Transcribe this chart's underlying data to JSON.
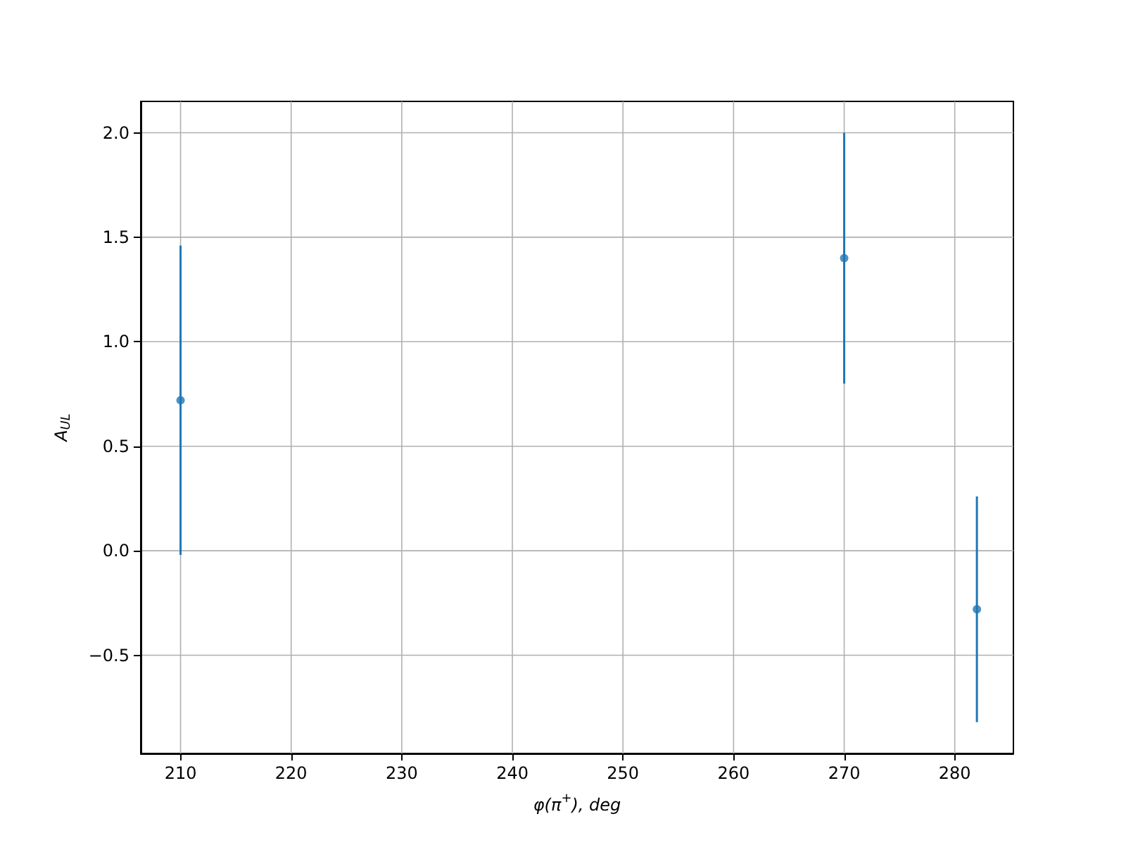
{
  "chart_data": {
    "type": "scatter",
    "xlabel": "φ(π$^{+}$), deg",
    "ylabel": "A$_{UL}$",
    "x": [
      210,
      270,
      282
    ],
    "values": [
      0.72,
      1.4,
      -0.28
    ],
    "errors": [
      0.74,
      0.6,
      0.54
    ],
    "color": "#1f77b4",
    "marker": "circle",
    "xlim": [
      206.4,
      285.3
    ],
    "xticks": [
      210,
      220,
      230,
      240,
      250,
      260,
      270,
      280
    ],
    "ylim": [
      -0.97,
      2.15
    ],
    "yticks": [
      {
        "value": -0.5,
        "label": "−0.5"
      },
      {
        "value": 0,
        "label": "0.0"
      },
      0.5,
      {
        "value": 1,
        "label": "1.0"
      },
      1.5,
      {
        "value": 2,
        "label": "2.0"
      }
    ],
    "grid": true
  }
}
